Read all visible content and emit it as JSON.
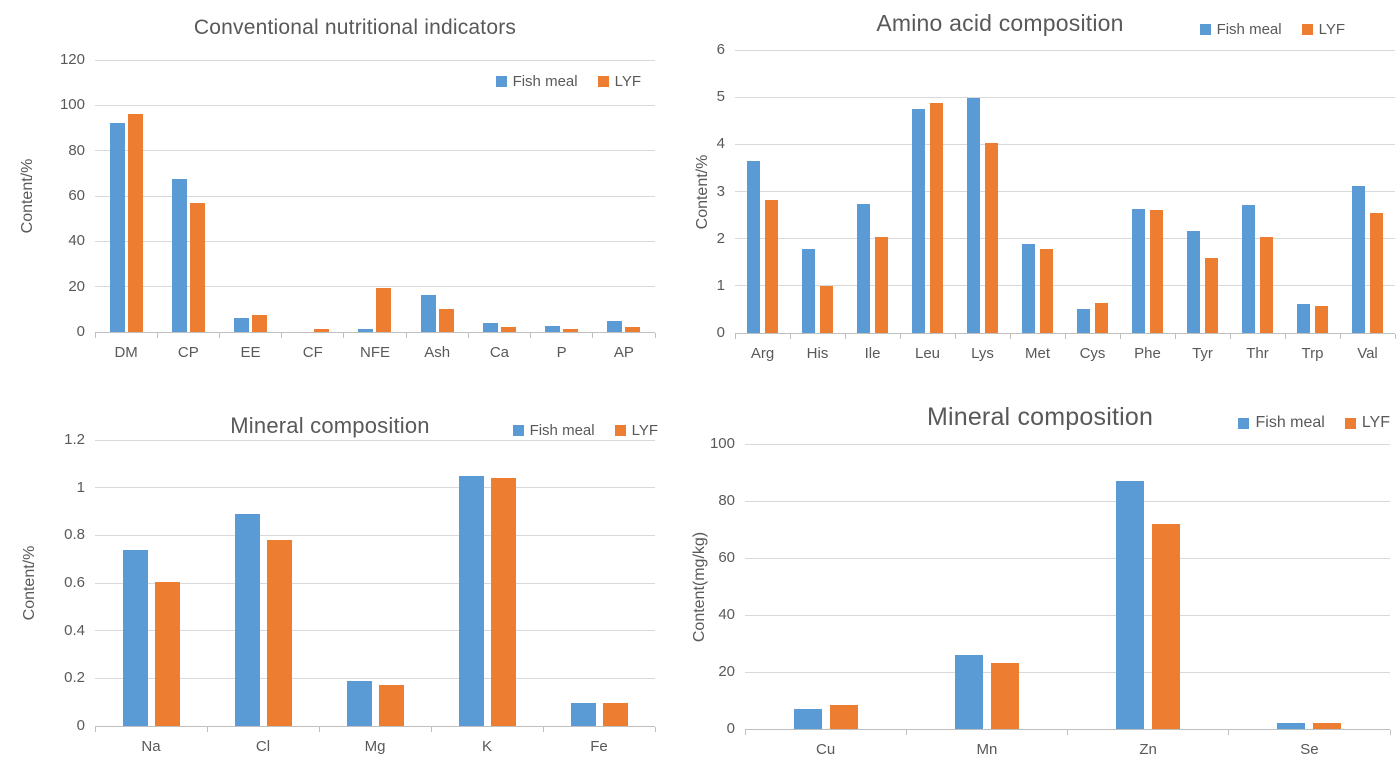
{
  "figure": {
    "background": "#ffffff",
    "text_color": "#595959",
    "gridline_color": "#d9d9d9",
    "axis_line_color": "#bfbfbf"
  },
  "legend_labels": [
    "Fish meal",
    "LYF"
  ],
  "series_colors": {
    "fish_meal": "#5B9BD5",
    "lyf": "#ED7D31"
  },
  "chart_data": [
    {
      "type": "bar",
      "title": "Conventional nutritional indicators",
      "xlabel": "",
      "ylabel": "Content/%",
      "ylim": [
        0,
        120
      ],
      "yticks": [
        0,
        20,
        40,
        60,
        80,
        100,
        120
      ],
      "ytick_labels": [
        "0",
        "20",
        "40",
        "60",
        "80",
        "100",
        "120"
      ],
      "grid": true,
      "legend_position": "inside-top-right",
      "categories": [
        "DM",
        "CP",
        "EE",
        "CF",
        "NFE",
        "Ash",
        "Ca",
        "P",
        "AP"
      ],
      "series": [
        {
          "name": "Fish meal",
          "color": "#5B9BD5",
          "values": [
            92,
            67.5,
            6.3,
            0,
            1.5,
            16.3,
            4,
            2.8,
            4.8
          ]
        },
        {
          "name": "LYF",
          "color": "#ED7D31",
          "values": [
            96,
            57,
            7.5,
            1.2,
            19.5,
            10.2,
            2,
            1.2,
            2.3
          ]
        }
      ]
    },
    {
      "type": "bar",
      "title": "Amino acid composition",
      "xlabel": "",
      "ylabel": "Content/%",
      "ylim": [
        0,
        6
      ],
      "yticks": [
        0,
        1,
        2,
        3,
        4,
        5,
        6
      ],
      "ytick_labels": [
        "0",
        "1",
        "2",
        "3",
        "4",
        "5",
        "6"
      ],
      "grid": true,
      "legend_position": "top-right-of-title",
      "categories": [
        "Arg",
        "His",
        "Ile",
        "Leu",
        "Lys",
        "Met",
        "Cys",
        "Phe",
        "Tyr",
        "Thr",
        "Trp",
        "Val"
      ],
      "series": [
        {
          "name": "Fish meal",
          "color": "#5B9BD5",
          "values": [
            3.64,
            1.78,
            2.73,
            4.76,
            4.99,
            1.89,
            0.5,
            2.62,
            2.16,
            2.71,
            0.62,
            3.11
          ]
        },
        {
          "name": "LYF",
          "color": "#ED7D31",
          "values": [
            2.81,
            1.0,
            2.04,
            4.87,
            4.02,
            1.78,
            0.64,
            2.6,
            1.59,
            2.04,
            0.57,
            2.54
          ]
        }
      ]
    },
    {
      "type": "bar",
      "title": "Mineral composition",
      "xlabel": "",
      "ylabel": "Content/%",
      "ylim": [
        0,
        1.2
      ],
      "yticks": [
        0,
        0.2,
        0.4,
        0.6,
        0.8,
        1,
        1.2
      ],
      "ytick_labels": [
        "0",
        "0.2",
        "0.4",
        "0.6",
        "0.8",
        "1",
        "1.2"
      ],
      "grid": true,
      "legend_position": "top-right-of-title",
      "categories": [
        "Na",
        "Cl",
        "Mg",
        "K",
        "Fe"
      ],
      "series": [
        {
          "name": "Fish meal",
          "color": "#5B9BD5",
          "values": [
            0.74,
            0.89,
            0.19,
            1.05,
            0.095
          ]
        },
        {
          "name": "LYF",
          "color": "#ED7D31",
          "values": [
            0.605,
            0.78,
            0.17,
            1.04,
            0.095
          ]
        }
      ]
    },
    {
      "type": "bar",
      "title": "Mineral composition",
      "xlabel": "",
      "ylabel": "Content(mg/kg)",
      "ylim": [
        0,
        100
      ],
      "yticks": [
        0,
        20,
        40,
        60,
        80,
        100
      ],
      "ytick_labels": [
        "0",
        "20",
        "40",
        "60",
        "80",
        "100"
      ],
      "grid": true,
      "legend_position": "top-right-of-title",
      "categories": [
        "Cu",
        "Mn",
        "Zn",
        "Se"
      ],
      "series": [
        {
          "name": "Fish meal",
          "color": "#5B9BD5",
          "values": [
            7,
            26,
            87,
            2
          ]
        },
        {
          "name": "LYF",
          "color": "#ED7D31",
          "values": [
            8.3,
            23.3,
            72,
            2
          ]
        }
      ]
    }
  ]
}
